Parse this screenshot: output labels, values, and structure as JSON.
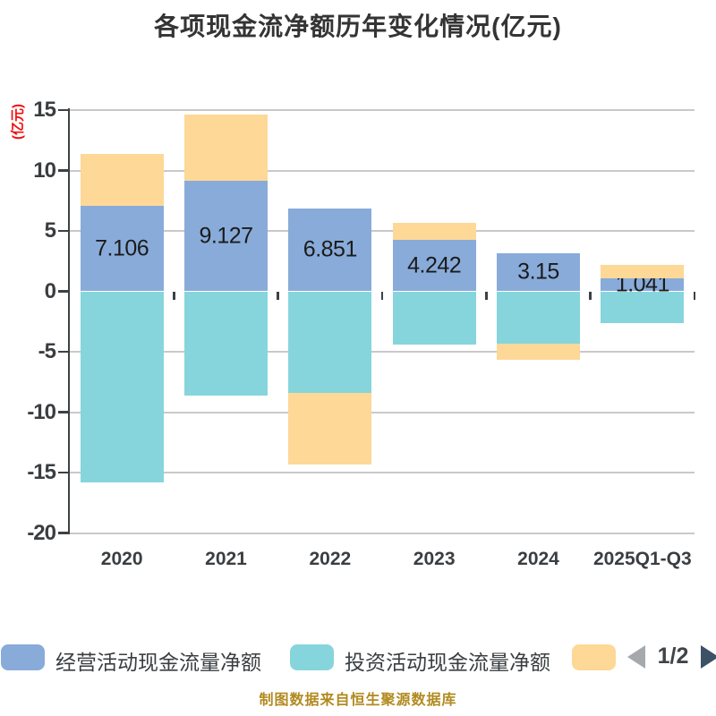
{
  "title": "各项现金流净额历年变化情况(亿元)",
  "chart_data": {
    "type": "bar",
    "stacked": true,
    "title": "各项现金流净额历年变化情况(亿元)",
    "ylabel": "(亿元)",
    "xlabel": "",
    "categories": [
      "2020",
      "2021",
      "2022",
      "2023",
      "2024",
      "2025Q1-Q3"
    ],
    "series": [
      {
        "name": "经营活动现金流量净额",
        "color": "#88abd9",
        "values": [
          7.106,
          9.127,
          6.851,
          4.242,
          3.15,
          1.041
        ]
      },
      {
        "name": "投资活动现金流量净额",
        "color": "#87d5dc",
        "values": [
          -15.8,
          -8.6,
          -8.4,
          -4.4,
          -4.3,
          -2.6
        ]
      },
      {
        "name": "",
        "color": "#fdd897",
        "values": [
          4.3,
          5.5,
          -5.9,
          1.45,
          -1.4,
          1.15
        ]
      }
    ],
    "bar_value_labels": [
      "7.106",
      "9.127",
      "6.851",
      "4.242",
      "3.15",
      "1.041"
    ],
    "yticks": [
      15,
      10,
      5,
      0,
      -5,
      -10,
      -15,
      -20
    ],
    "ylim": [
      -20,
      15
    ],
    "grid": true,
    "legend_position": "bottom"
  },
  "legend": {
    "items": [
      {
        "label": "经营活动现金流量净额",
        "color": "#88abd9"
      },
      {
        "label": "投资活动现金流量净额",
        "color": "#87d5dc"
      },
      {
        "label": "",
        "color": "#fdd897"
      }
    ],
    "pager": {
      "text": "1/2",
      "prev_color": "#a6a9ac",
      "next_color": "#3c5066"
    }
  },
  "footer": {
    "text": "制图数据来自恒生聚源数据库"
  },
  "colors": {
    "title": "#343434",
    "axis": "#3c4144",
    "grid": "#c9c9c9",
    "tick_label": "#3a3e41",
    "ylabel": "#f10d0d",
    "value_label": "#1b1b1b",
    "footer": "#b18a1f",
    "background": "#ffffff"
  }
}
